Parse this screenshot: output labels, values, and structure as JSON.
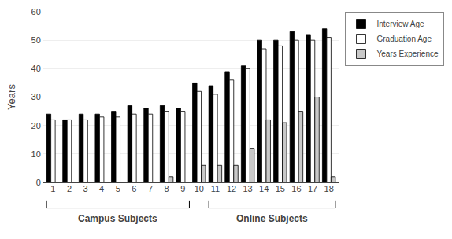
{
  "chart_data": {
    "type": "bar",
    "y_label": "Years",
    "categories": [
      "1",
      "2",
      "3",
      "4",
      "5",
      "6",
      "7",
      "8",
      "9",
      "10",
      "11",
      "12",
      "13",
      "14",
      "15",
      "16",
      "17",
      "18"
    ],
    "series": [
      {
        "name": "Interview Age",
        "color": "#000000",
        "values": [
          24,
          22,
          24,
          24,
          25,
          27,
          26,
          27,
          26,
          35,
          34,
          39,
          41,
          50,
          50,
          53,
          52,
          54
        ]
      },
      {
        "name": "Graduation Age",
        "color": "#ffffff",
        "values": [
          22,
          22,
          22,
          23,
          23,
          24,
          24,
          25,
          25,
          32,
          31,
          36,
          40,
          47,
          48,
          50,
          50,
          51
        ]
      },
      {
        "name": "Years Experience",
        "color": "#c8c8c8",
        "values": [
          0,
          0,
          0,
          0,
          0,
          0,
          0,
          2,
          0,
          6,
          6,
          6,
          12,
          22,
          21,
          25,
          30,
          2
        ]
      }
    ],
    "annotations": [
      {
        "text": "Campus Subjects",
        "start": "1",
        "end": "9"
      },
      {
        "text": "Online Subjects",
        "start": "11",
        "end": "18"
      }
    ],
    "ylim": [
      0,
      60
    ],
    "yticks": [
      0,
      10,
      20,
      30,
      40,
      50,
      60
    ],
    "grid": true,
    "legend": "right"
  }
}
